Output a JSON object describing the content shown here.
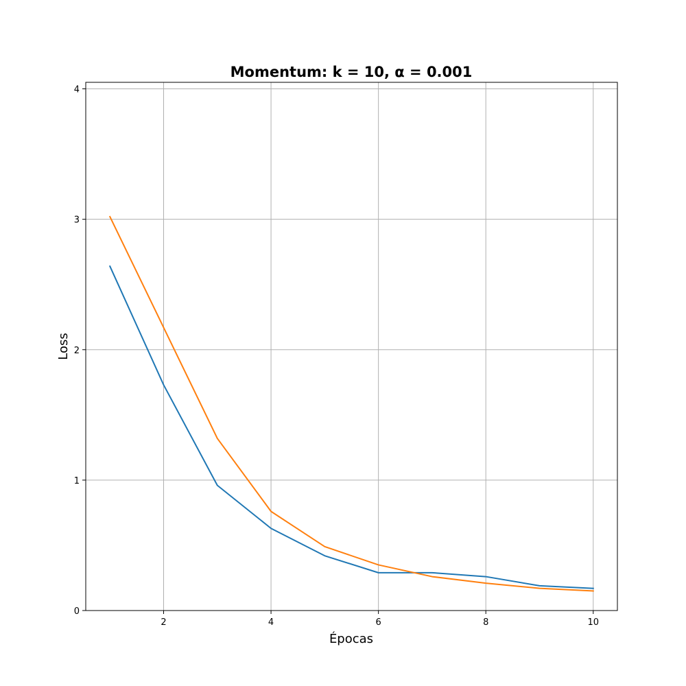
{
  "chart_data": {
    "type": "line",
    "title": "Momentum: k = 10, α = 0.001",
    "xlabel": "Épocas",
    "ylabel": "Loss",
    "x": [
      1,
      2,
      3,
      4,
      5,
      6,
      7,
      8,
      9,
      10
    ],
    "xlim": [
      0.55,
      10.45
    ],
    "ylim": [
      0,
      4.05
    ],
    "xticks": [
      2,
      4,
      6,
      8,
      10
    ],
    "yticks": [
      0,
      1,
      2,
      3,
      4
    ],
    "grid": true,
    "series": [
      {
        "color": "#1f77b4",
        "values": [
          2.64,
          1.73,
          0.96,
          0.63,
          0.42,
          0.29,
          0.29,
          0.26,
          0.19,
          0.17
        ]
      },
      {
        "color": "#ff7f0e",
        "values": [
          3.02,
          2.17,
          1.32,
          0.76,
          0.49,
          0.35,
          0.26,
          0.21,
          0.17,
          0.15
        ]
      }
    ]
  }
}
